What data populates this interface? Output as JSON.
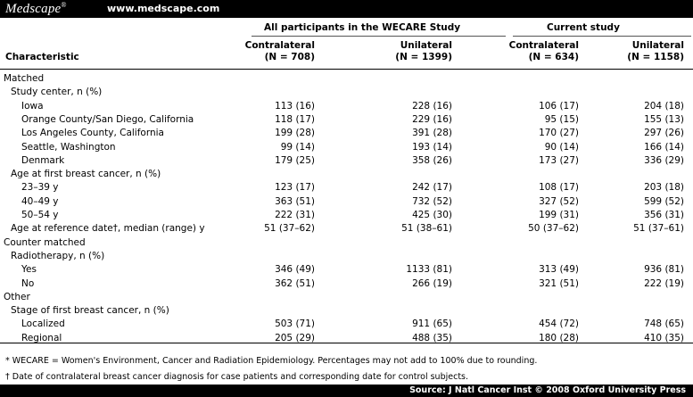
{
  "header": {
    "brand": "Medscape",
    "brand_mark": "®",
    "url": "www.medscape.com"
  },
  "groups": {
    "wecare": "All participants in the WECARE Study",
    "current": "Current study"
  },
  "columns": {
    "characteristic": "Characteristic",
    "c1": [
      "Contralateral",
      "(N = 708)"
    ],
    "c2": [
      "Unilateral",
      "(N = 1399)"
    ],
    "c3": [
      "Contralateral",
      "(N = 634)"
    ],
    "c4": [
      "Unilateral",
      "(N = 1158)"
    ]
  },
  "rows": [
    {
      "label": "Matched",
      "indent": 0,
      "values": []
    },
    {
      "label": "Study center, n (%)",
      "indent": 1,
      "values": []
    },
    {
      "label": "Iowa",
      "indent": 2,
      "values": [
        "113 (16)",
        "228 (16)",
        "106 (17)",
        "204 (18)"
      ]
    },
    {
      "label": "Orange County/San Diego, California",
      "indent": 2,
      "values": [
        "118 (17)",
        "229 (16)",
        "95 (15)",
        "155 (13)"
      ]
    },
    {
      "label": "Los Angeles County, California",
      "indent": 2,
      "values": [
        "199 (28)",
        "391 (28)",
        "170 (27)",
        "297 (26)"
      ]
    },
    {
      "label": "Seattle, Washington",
      "indent": 2,
      "values": [
        "99 (14)",
        "193 (14)",
        "90 (14)",
        "166 (14)"
      ]
    },
    {
      "label": "Denmark",
      "indent": 2,
      "values": [
        "179 (25)",
        "358 (26)",
        "173 (27)",
        "336 (29)"
      ]
    },
    {
      "label": "Age at first breast cancer, n (%)",
      "indent": 1,
      "values": []
    },
    {
      "label": "23–39 y",
      "indent": 2,
      "values": [
        "123 (17)",
        "242 (17)",
        "108 (17)",
        "203 (18)"
      ]
    },
    {
      "label": "40–49 y",
      "indent": 2,
      "values": [
        "363 (51)",
        "732 (52)",
        "327 (52)",
        "599 (52)"
      ]
    },
    {
      "label": "50–54 y",
      "indent": 2,
      "values": [
        "222 (31)",
        "425 (30)",
        "199 (31)",
        "356 (31)"
      ]
    },
    {
      "label": "Age at reference date†, median (range) y",
      "indent": 1,
      "values": [
        "51 (37–62)",
        "51 (38–61)",
        "50 (37–62)",
        "51 (37–61)"
      ]
    },
    {
      "label": "Counter matched",
      "indent": 0,
      "values": []
    },
    {
      "label": "Radiotherapy, n (%)",
      "indent": 1,
      "values": []
    },
    {
      "label": "Yes",
      "indent": 2,
      "values": [
        "346 (49)",
        "1133 (81)",
        "313 (49)",
        "936 (81)"
      ]
    },
    {
      "label": "No",
      "indent": 2,
      "values": [
        "362 (51)",
        "266 (19)",
        "321 (51)",
        "222 (19)"
      ]
    },
    {
      "label": "Other",
      "indent": 0,
      "values": []
    },
    {
      "label": "Stage of first breast cancer, n (%)",
      "indent": 1,
      "values": []
    },
    {
      "label": "Localized",
      "indent": 2,
      "values": [
        "503 (71)",
        "911 (65)",
        "454 (72)",
        "748 (65)"
      ]
    },
    {
      "label": "Regional",
      "indent": 2,
      "values": [
        "205 (29)",
        "488 (35)",
        "180 (28)",
        "410 (35)"
      ]
    }
  ],
  "footnotes": [
    "*  WECARE = Women's Environment, Cancer and Radiation Epidemiology. Percentages may not add to 100% due to rounding.",
    "†  Date of contralateral breast cancer diagnosis for case patients and corresponding date for control subjects."
  ],
  "source": "Source: J Natl Cancer Inst © 2008 Oxford University Press"
}
